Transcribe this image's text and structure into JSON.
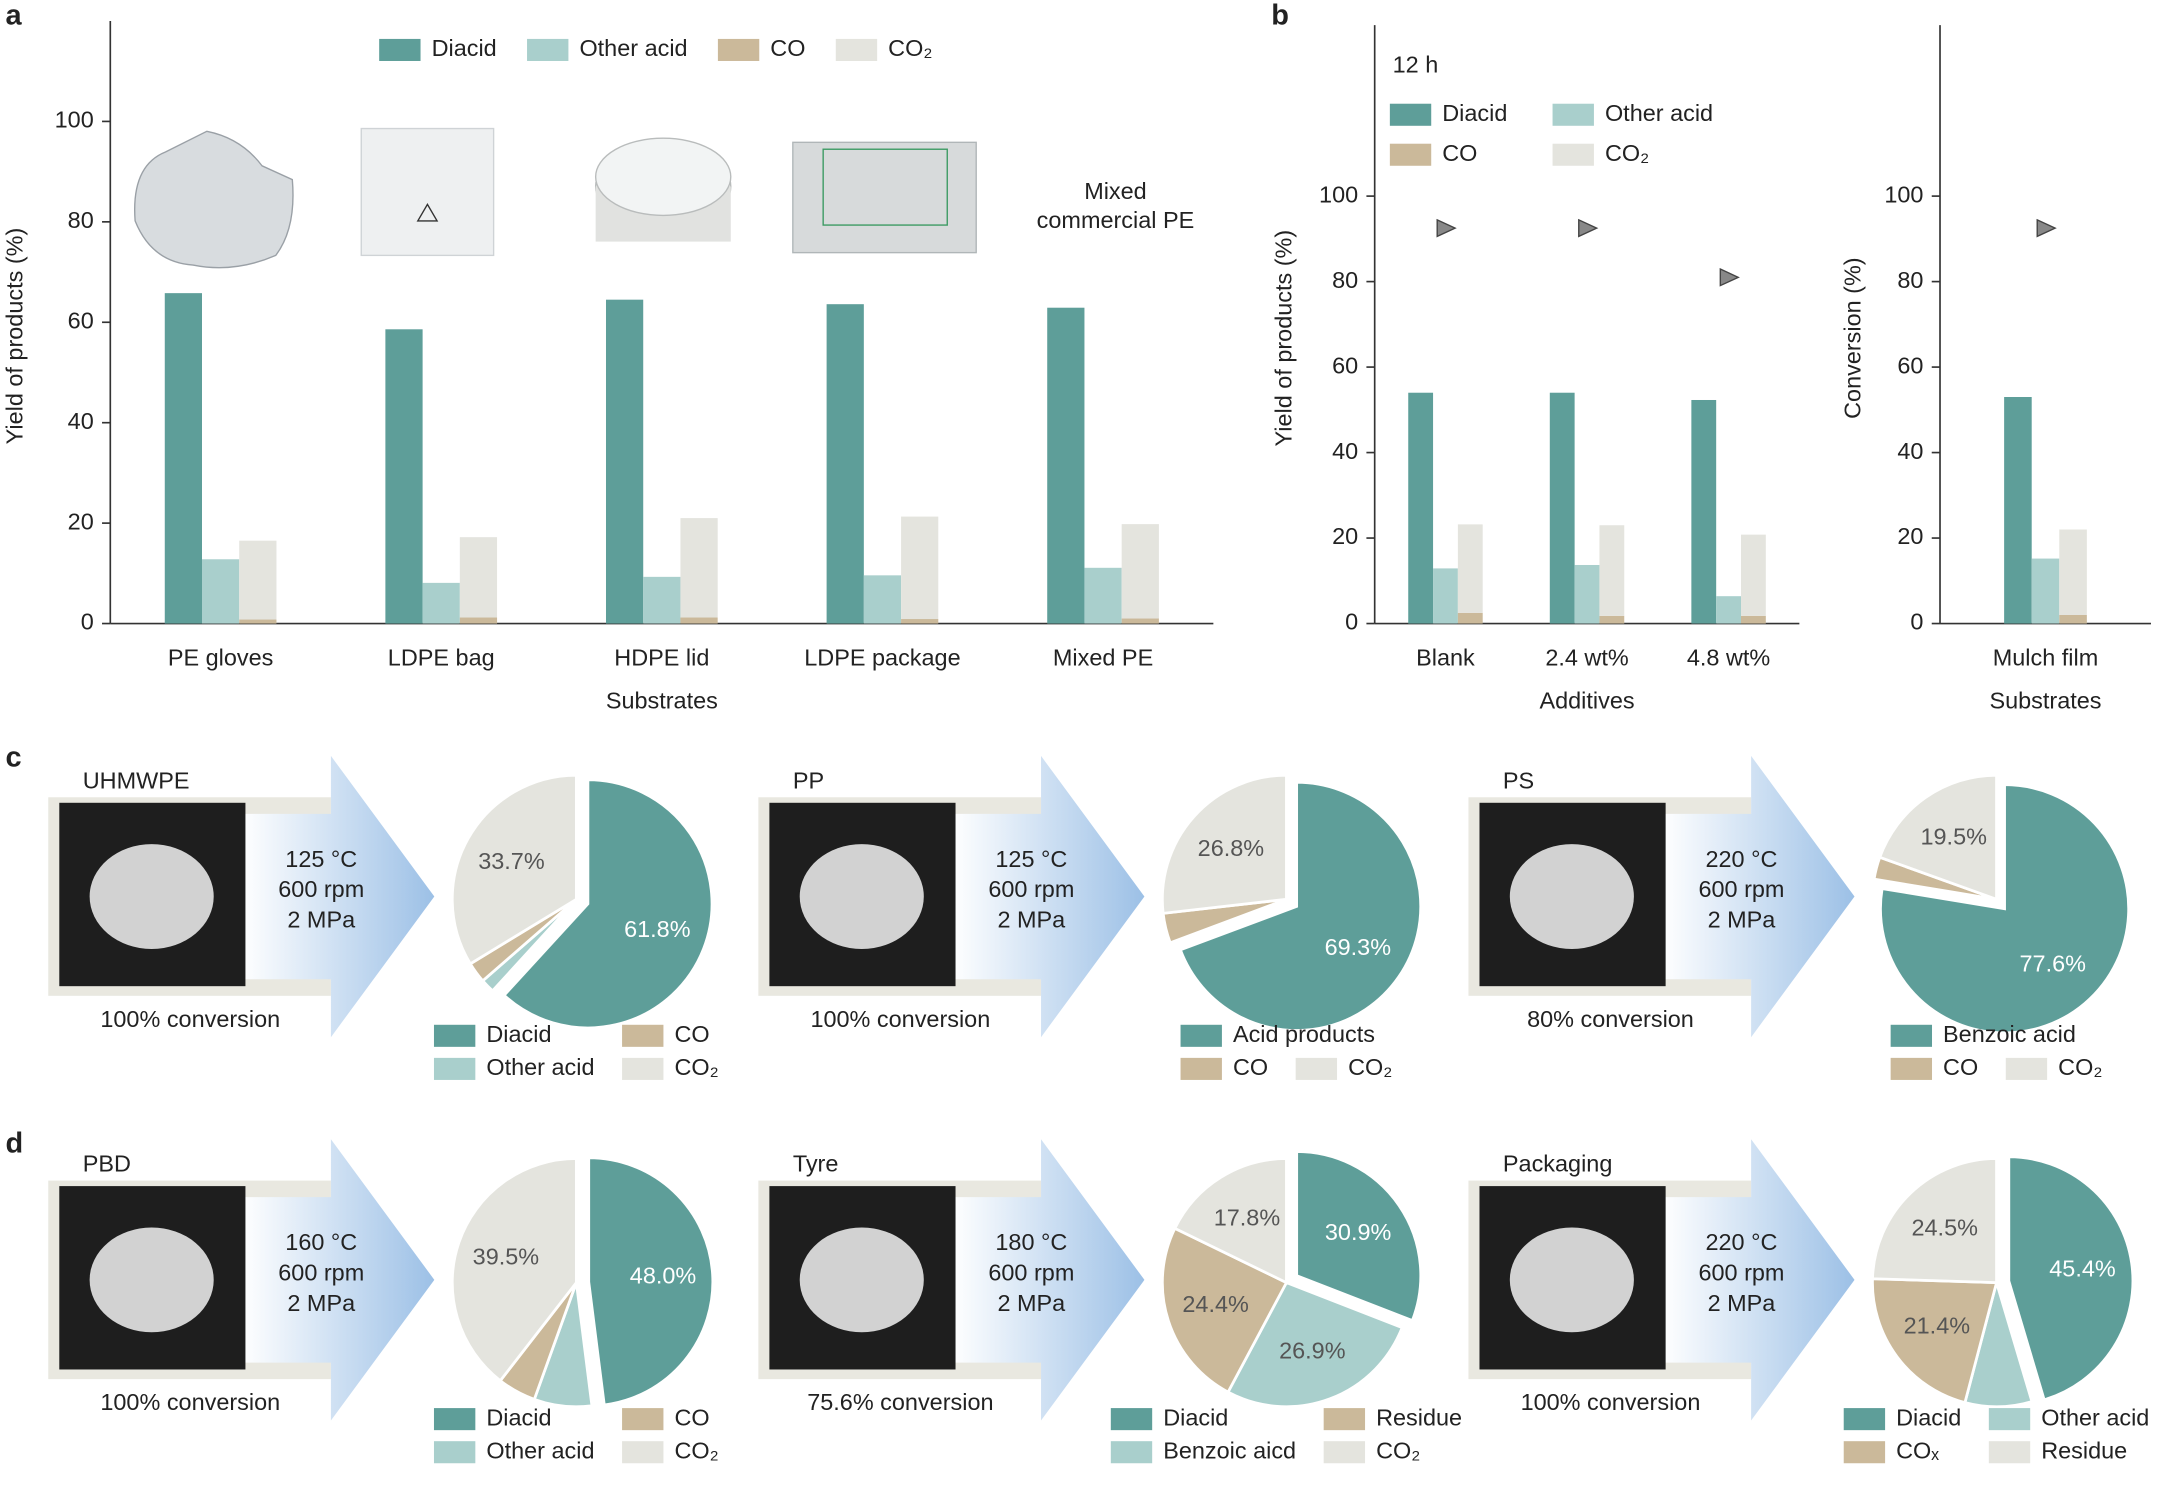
{
  "chart_data": [
    {
      "type": "bar",
      "panel": "a",
      "ylabel": "Yield of products (%)",
      "xlabel": "Substrates",
      "annotation": "Mixed commercial PE",
      "categories": [
        "PE gloves",
        "LDPE bag",
        "HDPE lid",
        "LDPE package",
        "Mixed PE"
      ],
      "series": [
        {
          "name": "Diacid",
          "color": "#5e9e99",
          "values": [
            65.8,
            58.6,
            64.5,
            63.6,
            62.9
          ]
        },
        {
          "name": "Other acid",
          "color": "#a9cfcc",
          "values": [
            12.8,
            8.1,
            9.3,
            9.6,
            11.1
          ]
        },
        {
          "name": "CO",
          "color": "#cbb99a",
          "values": [
            0.8,
            1.2,
            1.2,
            0.9,
            1.0
          ]
        },
        {
          "name": "CO₂",
          "color": "#e4e4de",
          "values": [
            15.7,
            16.0,
            19.8,
            20.4,
            18.8
          ],
          "stacked_on": "CO"
        }
      ],
      "ylim": [
        0,
        120
      ],
      "yticks": [
        0,
        20,
        40,
        60,
        80,
        100
      ]
    },
    {
      "type": "bar",
      "panel": "b",
      "ylabel": "Yield of products (%)",
      "xlabel": "Additives",
      "annotation": "12 h",
      "categories": [
        "Blank",
        "2.4 wt%",
        "4.8 wt%"
      ],
      "series": [
        {
          "name": "Diacid",
          "color": "#5e9e99",
          "values": [
            54.0,
            54.0,
            52.3
          ]
        },
        {
          "name": "Other acid",
          "color": "#a9cfcc",
          "values": [
            12.9,
            13.7,
            6.4
          ]
        },
        {
          "name": "CO",
          "color": "#cbb99a",
          "values": [
            2.5,
            1.8,
            1.8
          ]
        },
        {
          "name": "CO₂",
          "color": "#e4e4de",
          "values": [
            20.7,
            21.2,
            19.0
          ],
          "stacked_on": "CO"
        }
      ],
      "conversion": [
        92.5,
        92.5,
        81.0
      ],
      "ylim": [
        0,
        140
      ],
      "yticks": [
        0,
        20,
        40,
        60,
        80,
        100
      ]
    },
    {
      "type": "bar",
      "ylabel": "Conversion (%)",
      "xlabel": "Substrates",
      "legend": false,
      "categories": [
        "Mulch film"
      ],
      "series": [
        {
          "name": "Diacid",
          "color": "#5e9e99",
          "values": [
            53.0
          ]
        },
        {
          "name": "Other acid",
          "color": "#a9cfcc",
          "values": [
            15.2
          ]
        },
        {
          "name": "CO",
          "color": "#cbb99a",
          "values": [
            2.0
          ]
        },
        {
          "name": "CO₂",
          "color": "#e4e4de",
          "values": [
            20.0
          ],
          "stacked_on": "CO"
        }
      ],
      "conversion": [
        92.5
      ],
      "ylim": [
        0,
        140
      ],
      "yticks": [
        0,
        20,
        40,
        60,
        80,
        100
      ]
    },
    {
      "type": "pie",
      "panel": "c",
      "material": "UHMWPE",
      "conditions": [
        "125 °C",
        "600 rpm",
        "2 MPa"
      ],
      "conversion_label": "100% conversion",
      "labels": [
        "Diacid",
        "Other acid",
        "CO",
        "CO₂"
      ],
      "values": [
        61.8,
        1.8,
        2.7,
        33.7
      ],
      "value_labels": [
        "61.8%",
        null,
        null,
        "33.7%"
      ],
      "colors": [
        "#5e9e99",
        "#a9cfcc",
        "#cbb99a",
        "#e4e4de"
      ],
      "legend_layout": "columns"
    },
    {
      "type": "pie",
      "material": "PP",
      "conditions": [
        "125 °C",
        "600 rpm",
        "2 MPa"
      ],
      "conversion_label": "100% conversion",
      "labels": [
        "Acid products",
        "CO",
        "CO₂"
      ],
      "values": [
        69.3,
        3.9,
        26.8
      ],
      "value_labels": [
        "69.3%",
        null,
        "26.8%"
      ],
      "colors": [
        "#5e9e99",
        "#cbb99a",
        "#e4e4de"
      ],
      "legend_layout": "columns"
    },
    {
      "type": "pie",
      "material": "PS",
      "conditions": [
        "220 °C",
        "600 rpm",
        "2 MPa"
      ],
      "conversion_label": "80% conversion",
      "labels": [
        "Benzoic acid",
        "CO",
        "CO₂"
      ],
      "values": [
        77.6,
        2.9,
        19.5
      ],
      "value_labels": [
        "77.6%",
        null,
        "19.5%"
      ],
      "colors": [
        "#5e9e99",
        "#cbb99a",
        "#e4e4de"
      ],
      "legend_layout": "columns"
    },
    {
      "type": "pie",
      "panel": "d",
      "material": "PBD",
      "conditions": [
        "160 °C",
        "600 rpm",
        "2 MPa"
      ],
      "conversion_label": "100% conversion",
      "labels": [
        "Diacid",
        "Other acid",
        "CO",
        "CO₂"
      ],
      "values": [
        48.0,
        7.5,
        5.0,
        39.5
      ],
      "value_labels": [
        "48.0%",
        null,
        null,
        "39.5%"
      ],
      "colors": [
        "#5e9e99",
        "#a9cfcc",
        "#cbb99a",
        "#e4e4de"
      ],
      "legend_layout": "columns"
    },
    {
      "type": "pie",
      "material": "Tyre",
      "conditions": [
        "180 °C",
        "600 rpm",
        "2 MPa"
      ],
      "conversion_label": "75.6% conversion",
      "labels": [
        "Diacid",
        "Benzoic aicd",
        "Residue",
        "CO₂"
      ],
      "values": [
        30.9,
        26.9,
        24.4,
        17.8
      ],
      "value_labels": [
        "30.9%",
        "26.9%",
        "24.4%",
        "17.8%"
      ],
      "colors": [
        "#5e9e99",
        "#a9cfcc",
        "#cbb99a",
        "#e4e4de"
      ],
      "legend_layout": "columns"
    },
    {
      "type": "pie",
      "material": "Packaging",
      "conditions": [
        "220 °C",
        "600 rpm",
        "2 MPa"
      ],
      "conversion_label": "100% conversion",
      "labels": [
        "Diacid",
        "Other acid",
        "COₓ",
        "Residue"
      ],
      "values": [
        45.4,
        8.7,
        21.4,
        24.5
      ],
      "value_labels": [
        "45.4%",
        null,
        "21.4%",
        "24.5%"
      ],
      "colors": [
        "#5e9e99",
        "#a9cfcc",
        "#cbb99a",
        "#e4e4de"
      ],
      "legend_layout": "rows"
    }
  ]
}
